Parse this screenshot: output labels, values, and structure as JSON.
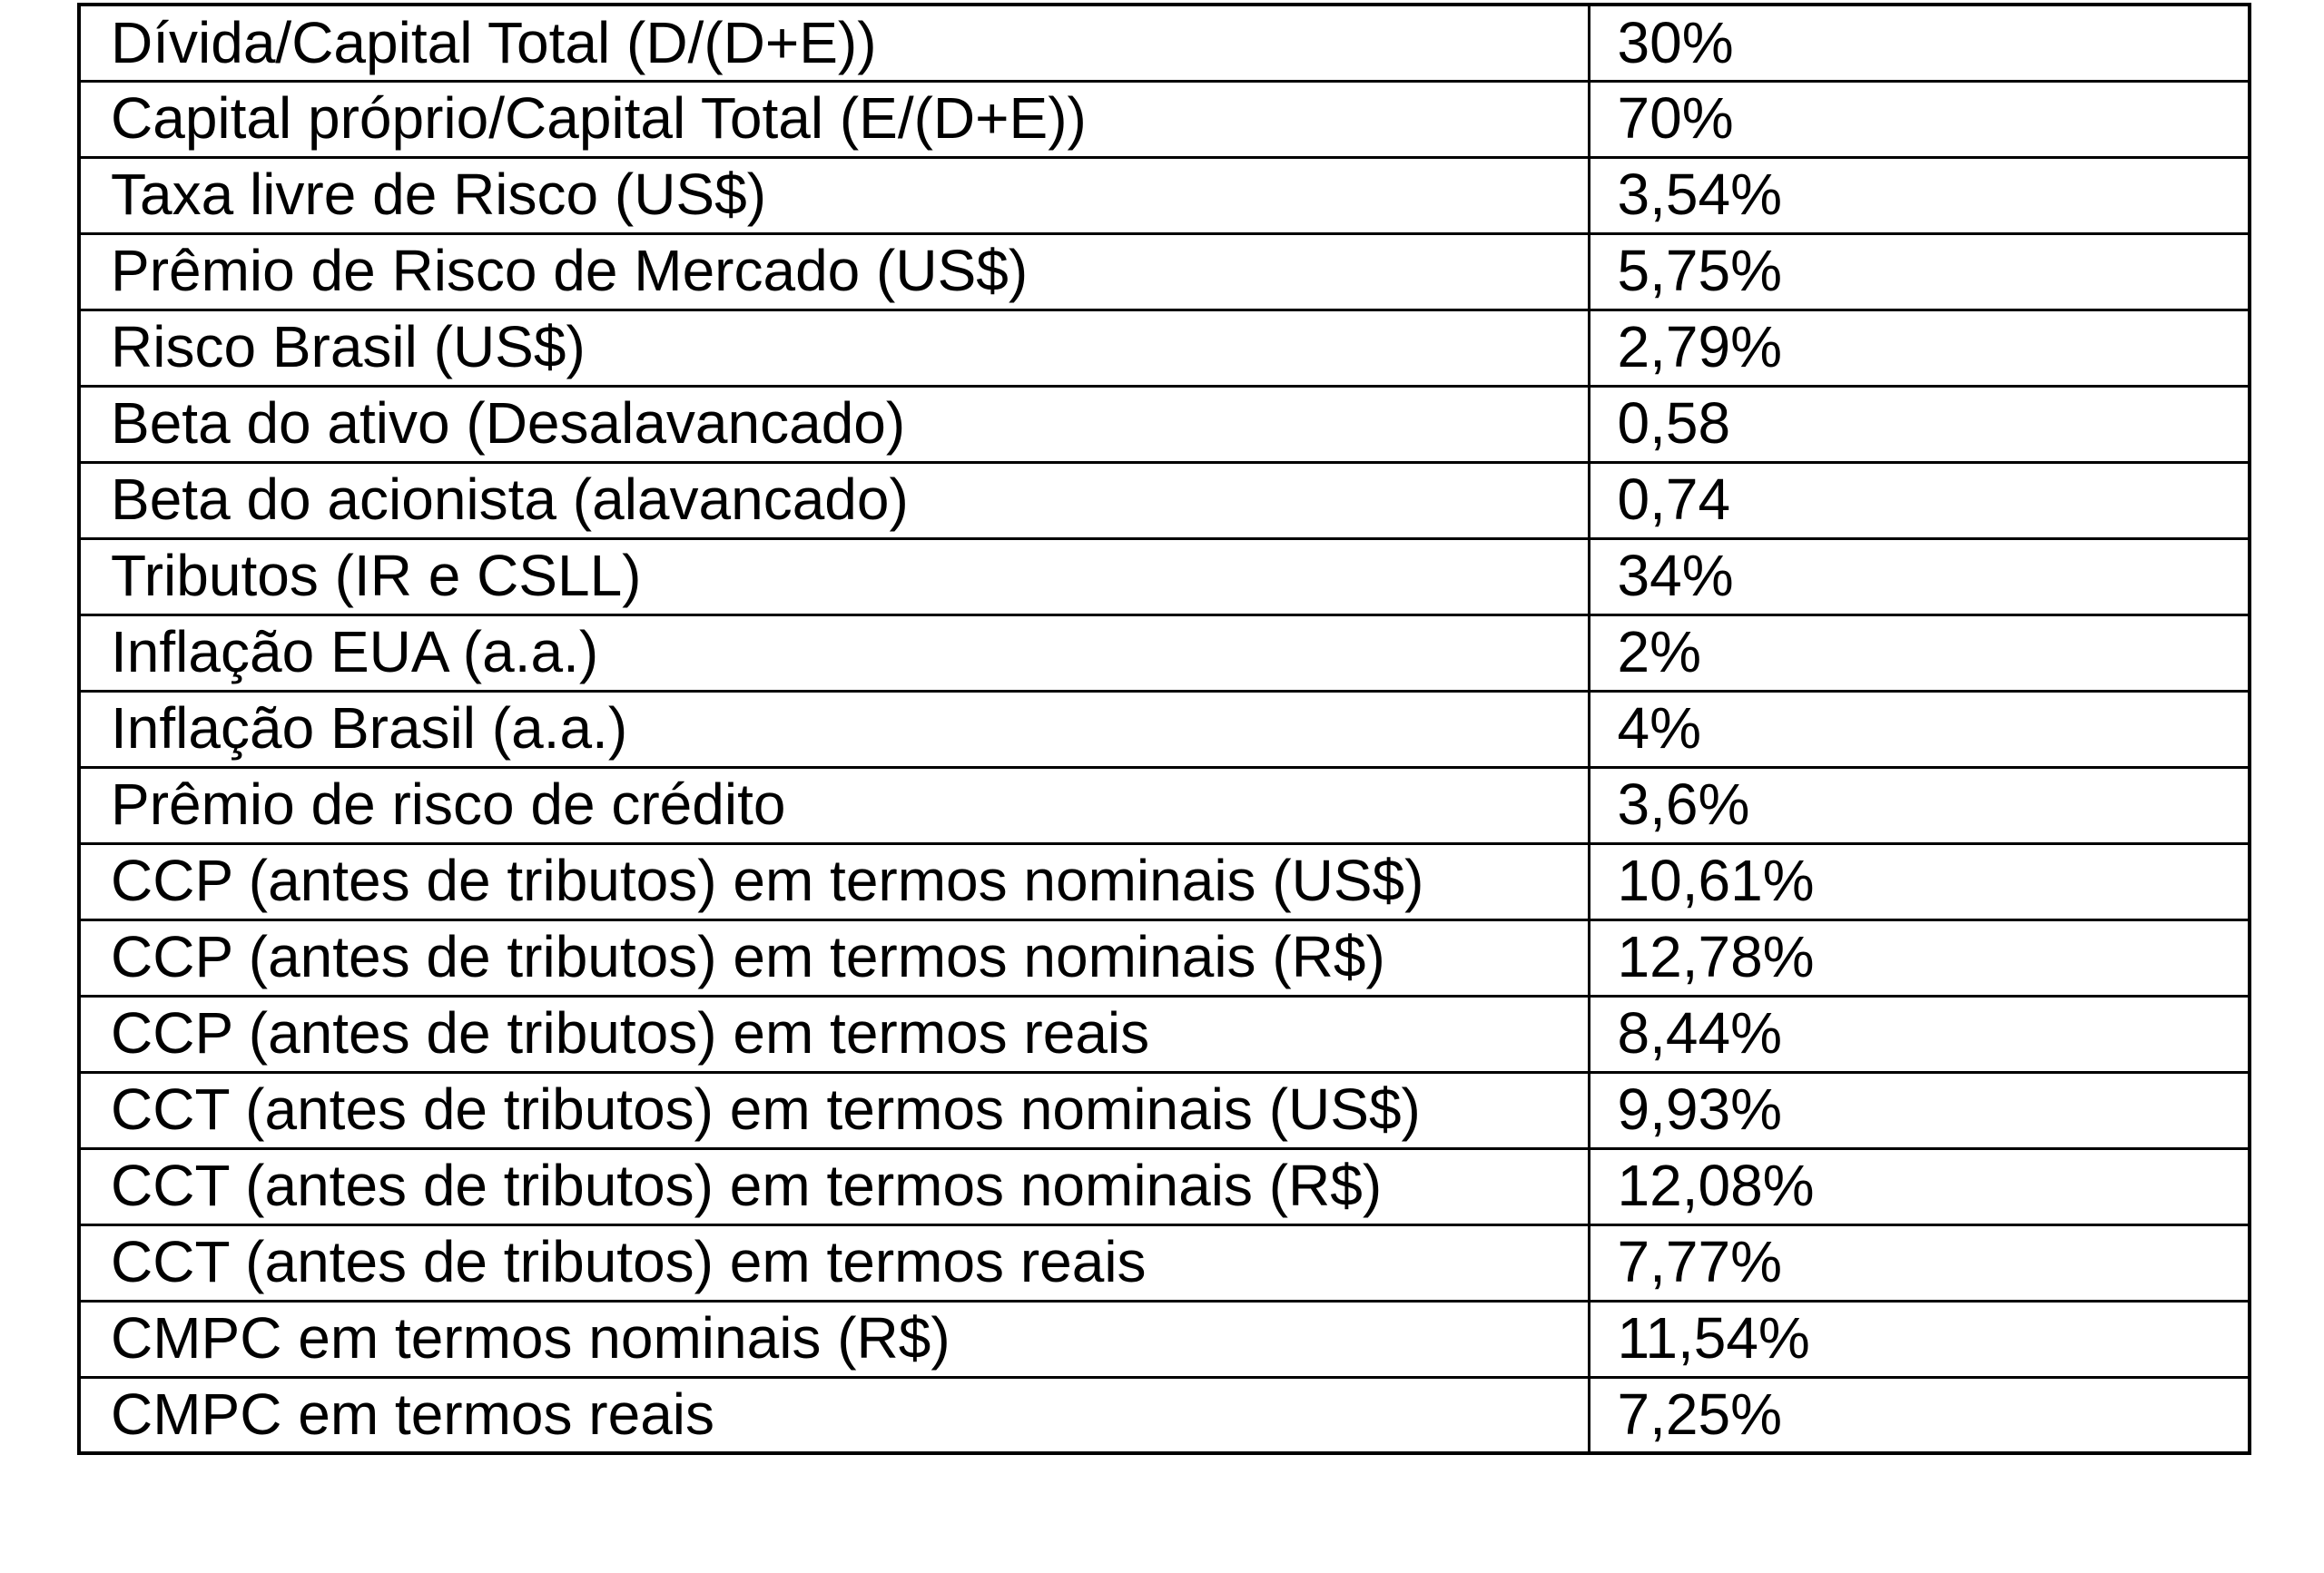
{
  "colors": {
    "background": "#ffffff",
    "border": "#000000",
    "text": "#000000"
  },
  "table": {
    "name": "wacc-parameters-table",
    "columns": [
      "parameter",
      "value"
    ],
    "rows": [
      {
        "label": "Dívida/Capital Total (D/(D+E))",
        "value": "30%"
      },
      {
        "label": "Capital próprio/Capital Total (E/(D+E))",
        "value": "70%"
      },
      {
        "label": "Taxa livre de Risco (US$)",
        "value": "3,54%"
      },
      {
        "label": "Prêmio de Risco de Mercado (US$)",
        "value": "5,75%"
      },
      {
        "label": "Risco Brasil (US$)",
        "value": "2,79%"
      },
      {
        "label": "Beta do ativo (Desalavancado)",
        "value": "0,58"
      },
      {
        "label": "Beta do acionista (alavancado)",
        "value": "0,74"
      },
      {
        "label": "Tributos (IR e CSLL)",
        "value": "34%"
      },
      {
        "label": "Inflação EUA (a.a.)",
        "value": "2%"
      },
      {
        "label": "Inflação Brasil (a.a.)",
        "value": "4%"
      },
      {
        "label": "Prêmio de risco de crédito",
        "value": "3,6%"
      },
      {
        "label": "CCP (antes de tributos) em termos nominais (US$)",
        "value": "10,61%"
      },
      {
        "label": "CCP (antes de tributos) em termos nominais (R$)",
        "value": "12,78%"
      },
      {
        "label": "CCP (antes de tributos) em termos reais",
        "value": "8,44%"
      },
      {
        "label": "CCT (antes de tributos) em termos nominais (US$)",
        "value": "9,93%"
      },
      {
        "label": "CCT (antes de tributos) em termos nominais (R$)",
        "value": "12,08%"
      },
      {
        "label": "CCT (antes de tributos) em termos reais",
        "value": "7,77%"
      },
      {
        "label": "CMPC em termos nominais (R$)",
        "value": "11,54%"
      },
      {
        "label": "CMPC em termos reais",
        "value": "7,25%"
      }
    ]
  }
}
